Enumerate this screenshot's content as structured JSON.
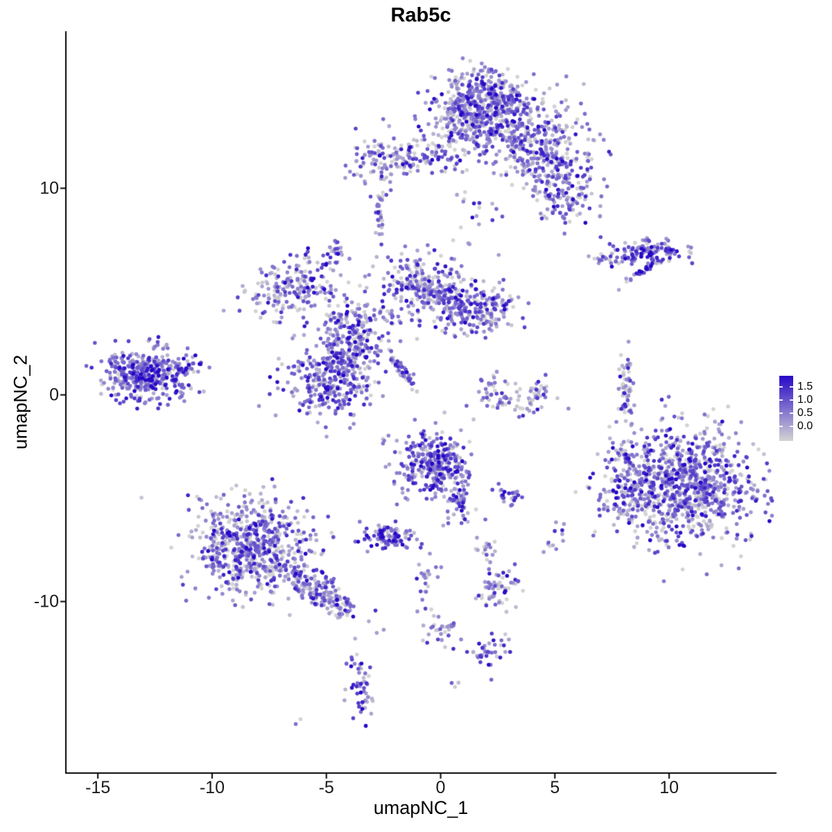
{
  "chart_data": {
    "type": "scatter",
    "title": "Rab5c",
    "xlabel": "umapNC_1",
    "ylabel": "umapNC_2",
    "xlim": [
      -16.4,
      14.7
    ],
    "ylim": [
      -18.3,
      17.6
    ],
    "x_ticks": [
      -15,
      -10,
      -5,
      0,
      5,
      10
    ],
    "y_ticks": [
      -10,
      0,
      10
    ],
    "grid": false,
    "legend_position": "right",
    "legend": {
      "ticks": [
        "1.5",
        "1.0",
        "0.5",
        "0.0"
      ],
      "low_color": "#D3D3D3",
      "high_color": "#2808C8",
      "vmax": 1.6
    },
    "point_radius": 2.8,
    "seed": 42,
    "expr_sd": 0.55,
    "clusters": [
      {
        "name": "top-main-core",
        "cx": 1.8,
        "cy": 14.2,
        "sx": 0.85,
        "sy": 0.75,
        "n": 300,
        "mu": 0.6
      },
      {
        "name": "top-main",
        "cx": 2.2,
        "cy": 13.3,
        "sx": 1.5,
        "sy": 1.05,
        "n": 450,
        "mu": 0.5
      },
      {
        "name": "top-right",
        "cx": 4.6,
        "cy": 11.6,
        "sx": 1.0,
        "sy": 0.8,
        "n": 250,
        "mu": 0.6
      },
      {
        "name": "top-right-arm",
        "cx": 5.5,
        "cy": 9.6,
        "sx": 0.7,
        "sy": 0.7,
        "n": 120,
        "mu": 0.6
      },
      {
        "name": "top-left-a",
        "cx": -2.9,
        "cy": 11.4,
        "sx": 0.6,
        "sy": 0.5,
        "n": 70,
        "mu": 0.6
      },
      {
        "name": "top-left-b",
        "cx": -1.4,
        "cy": 11.5,
        "sx": 0.7,
        "sy": 0.45,
        "n": 70,
        "mu": 0.5
      },
      {
        "name": "top-left-trail",
        "cx": 0.3,
        "cy": 11.7,
        "sx": 0.5,
        "sy": 0.3,
        "n": 25,
        "mu": 0.45
      },
      {
        "name": "upper-sparse",
        "cx": 1.7,
        "cy": 8.6,
        "sx": 0.5,
        "sy": 0.8,
        "n": 20,
        "mu": 0.5
      },
      {
        "name": "small-col",
        "cx": -2.7,
        "cy": 8.4,
        "sx": 0.1,
        "sy": 0.5,
        "n": 18,
        "mu": 0.65
      },
      {
        "name": "small-col-up",
        "cx": -2.7,
        "cy": 9.5,
        "sx": 0.12,
        "sy": 0.2,
        "n": 10,
        "mu": 0.6
      },
      {
        "name": "tiny-left",
        "cx": -4.6,
        "cy": 7.0,
        "sx": 0.2,
        "sy": 0.3,
        "n": 22,
        "mu": 0.55
      },
      {
        "name": "right-mid",
        "cx": 9.1,
        "cy": 6.9,
        "sx": 0.95,
        "sy": 0.3,
        "n": 110,
        "mu": 0.75
      },
      {
        "name": "right-mid-streak",
        "cx": 8.9,
        "cy": 6.0,
        "sx": 0.6,
        "sy": 0.07,
        "rot": 0.6,
        "n": 35,
        "mu": 0.85
      },
      {
        "name": "right-mid-tail",
        "cx": 7.2,
        "cy": 6.6,
        "sx": 0.4,
        "sy": 0.15,
        "n": 20,
        "mu": 0.6
      },
      {
        "name": "mid-left",
        "cx": -6.5,
        "cy": 5.2,
        "sx": 1.0,
        "sy": 0.75,
        "rot": 0.3,
        "n": 190,
        "mu": 0.55
      },
      {
        "name": "center-top",
        "cx": -0.9,
        "cy": 5.3,
        "sx": 0.9,
        "sy": 0.8,
        "n": 230,
        "mu": 0.6
      },
      {
        "name": "center-right",
        "cx": 1.7,
        "cy": 4.1,
        "sx": 0.95,
        "sy": 0.6,
        "n": 220,
        "mu": 0.6
      },
      {
        "name": "center-bridge",
        "cx": 0.4,
        "cy": 4.6,
        "sx": 0.5,
        "sy": 0.4,
        "n": 40,
        "mu": 0.55
      },
      {
        "name": "center-left",
        "cx": -3.7,
        "cy": 3.1,
        "sx": 0.8,
        "sy": 0.8,
        "n": 190,
        "mu": 0.6
      },
      {
        "name": "center-left-bridge",
        "cx": -4.2,
        "cy": 2.0,
        "sx": 0.5,
        "sy": 0.5,
        "n": 40,
        "mu": 0.6
      },
      {
        "name": "center-blob",
        "cx": -4.8,
        "cy": 0.8,
        "sx": 1.05,
        "sy": 0.95,
        "n": 320,
        "mu": 0.7
      },
      {
        "name": "diag-streak",
        "cx": -1.75,
        "cy": 1.3,
        "sx": 0.55,
        "sy": 0.08,
        "rot": -1.0,
        "n": 45,
        "mu": 0.8
      },
      {
        "name": "far-left",
        "cx": -12.9,
        "cy": 1.0,
        "sx": 0.95,
        "sy": 0.65,
        "n": 380,
        "mu": 0.75
      },
      {
        "name": "far-left-tail",
        "cx": -11.2,
        "cy": 1.4,
        "sx": 0.5,
        "sy": 0.3,
        "n": 30,
        "mu": 0.6
      },
      {
        "name": "arc-center",
        "cx": 3.2,
        "cy": -0.3,
        "sx": 1.0,
        "sy": 0.35,
        "n": 60,
        "mu": 0.5
      },
      {
        "name": "arc-left-tip",
        "cx": 2.2,
        "cy": 0.6,
        "sx": 0.25,
        "sy": 0.35,
        "n": 15,
        "mu": 0.6
      },
      {
        "name": "arc-right-tip",
        "cx": 4.3,
        "cy": 0.5,
        "sx": 0.25,
        "sy": 0.35,
        "n": 15,
        "mu": 0.55
      },
      {
        "name": "right-col",
        "cx": 8.15,
        "cy": 0.2,
        "sx": 0.18,
        "sy": 0.85,
        "n": 55,
        "mu": 0.35
      },
      {
        "name": "big-right",
        "cx": 10.6,
        "cy": -4.4,
        "sx": 1.6,
        "sy": 1.35,
        "n": 950,
        "mu": 0.6
      },
      {
        "name": "big-right-west",
        "cx": 8.2,
        "cy": -5.0,
        "sx": 0.45,
        "sy": 0.6,
        "n": 60,
        "mu": 0.65
      },
      {
        "name": "big-right-nw",
        "cx": 7.9,
        "cy": -2.9,
        "sx": 0.3,
        "sy": 0.35,
        "n": 15,
        "mu": 0.45
      },
      {
        "name": "center-low",
        "cx": -0.3,
        "cy": -3.3,
        "sx": 0.85,
        "sy": 0.75,
        "n": 300,
        "mu": 0.75
      },
      {
        "name": "center-low-tail",
        "cx": 0.8,
        "cy": -4.9,
        "sx": 0.4,
        "sy": 0.6,
        "n": 70,
        "mu": 0.6
      },
      {
        "name": "low-streak",
        "cx": 3.0,
        "cy": -4.9,
        "sx": 0.3,
        "sy": 0.22,
        "n": 25,
        "mu": 0.8
      },
      {
        "name": "small-dense",
        "cx": -2.3,
        "cy": -6.8,
        "sx": 0.55,
        "sy": 0.3,
        "n": 100,
        "mu": 0.9
      },
      {
        "name": "bottom-left",
        "cx": -8.3,
        "cy": -7.4,
        "sx": 1.25,
        "sy": 1.15,
        "n": 650,
        "mu": 0.5
      },
      {
        "name": "bottom-left-arm",
        "cx": -5.2,
        "cy": -9.6,
        "sx": 1.0,
        "sy": 0.35,
        "rot": -0.67,
        "n": 180,
        "mu": 0.5
      },
      {
        "name": "below-center-sparse",
        "cx": -0.6,
        "cy": -9.0,
        "sx": 0.25,
        "sy": 0.8,
        "n": 25,
        "mu": 0.45
      },
      {
        "name": "mid-low-dots",
        "cx": 2.0,
        "cy": -7.5,
        "sx": 0.3,
        "sy": 0.3,
        "n": 18,
        "mu": 0.35
      },
      {
        "name": "right-low-dots",
        "cx": 5.0,
        "cy": -6.8,
        "sx": 0.2,
        "sy": 0.4,
        "n": 12,
        "mu": 0.5
      },
      {
        "name": "bottom-mid",
        "cx": 2.5,
        "cy": -9.3,
        "sx": 0.4,
        "sy": 0.5,
        "n": 60,
        "mu": 0.45
      },
      {
        "name": "lower-a",
        "cx": 0.0,
        "cy": -11.5,
        "sx": 0.5,
        "sy": 0.4,
        "n": 30,
        "mu": 0.55
      },
      {
        "name": "lower-b",
        "cx": 2.2,
        "cy": -12.3,
        "sx": 0.4,
        "sy": 0.4,
        "n": 35,
        "mu": 0.65
      },
      {
        "name": "bottom-small",
        "cx": -3.5,
        "cy": -14.2,
        "sx": 0.3,
        "sy": 0.85,
        "n": 50,
        "mu": 0.75
      },
      {
        "name": "bottom-dot-a",
        "cx": 0.5,
        "cy": -13.9,
        "sx": 0.12,
        "sy": 0.12,
        "n": 3,
        "mu": 0.4
      },
      {
        "name": "bottom-dot-b",
        "cx": -6.2,
        "cy": -15.8,
        "sx": 0.1,
        "sy": 0.1,
        "n": 2,
        "mu": 0.8
      }
    ]
  }
}
